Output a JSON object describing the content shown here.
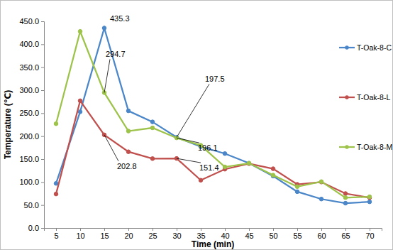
{
  "chart_data": {
    "type": "line",
    "y_label": "Temperature (℃)",
    "x_label": "Time (min)",
    "categories": [
      "5",
      "10",
      "15",
      "20",
      "25",
      "30",
      "35",
      "40",
      "45",
      "50",
      "55",
      "60",
      "65",
      "70"
    ],
    "series": [
      {
        "name": "T-Oak-8-C",
        "color": "#4a86c8",
        "marker": "circle",
        "values": [
          97,
          253,
          435.3,
          255,
          231,
          197.5,
          177,
          162,
          141,
          113,
          79,
          63,
          54,
          57
        ]
      },
      {
        "name": "T-Oak-8-L",
        "color": "#c0504d",
        "marker": "circle",
        "values": [
          74,
          277,
          202.8,
          166,
          151,
          151.4,
          104,
          128,
          140,
          129,
          95,
          100,
          75,
          66
        ]
      },
      {
        "name": "T-Oak-8-M",
        "color": "#9dc34a",
        "marker": "circle",
        "values": [
          227,
          428,
          294.7,
          211,
          218,
          196.1,
          180,
          133,
          141,
          115,
          90,
          101,
          66,
          68
        ]
      }
    ],
    "annotations": [
      {
        "text": "435.3",
        "x": "15",
        "y": 435.3
      },
      {
        "text": "294.7",
        "x": "15",
        "y": 294.7
      },
      {
        "text": "197.5",
        "x": "30",
        "y": 197.5
      },
      {
        "text": "196.1",
        "x": "30",
        "y": 196.1
      },
      {
        "text": "202.8",
        "x": "15",
        "y": 202.8
      },
      {
        "text": "151.4",
        "x": "30",
        "y": 151.4
      }
    ],
    "ylim": [
      0,
      450
    ],
    "yticks": [
      {
        "value": 0,
        "label": "0.0"
      },
      {
        "value": 50,
        "label": "50.0"
      },
      {
        "value": 100,
        "label": "100.0"
      },
      {
        "value": 150,
        "label": "150.0"
      },
      {
        "value": 200,
        "label": "200.0"
      },
      {
        "value": 250,
        "label": "250.0"
      },
      {
        "value": 300,
        "label": "300.0"
      },
      {
        "value": 350,
        "label": "350.0"
      },
      {
        "value": 400,
        "label": "400.0"
      },
      {
        "value": 450,
        "label": "450.0"
      }
    ],
    "grid": false,
    "legend": "right"
  }
}
